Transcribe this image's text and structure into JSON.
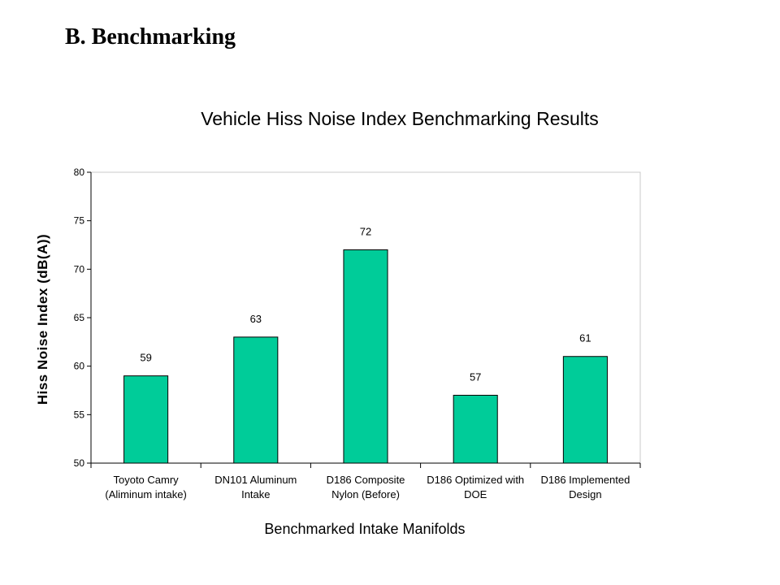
{
  "page": {
    "heading": "B. Benchmarking"
  },
  "chart_data": {
    "type": "bar",
    "title": "Vehicle Hiss Noise Index Benchmarking Results",
    "xlabel": "Benchmarked Intake Manifolds",
    "ylabel": "Hiss Noise Index (dB(A))",
    "categories": [
      [
        "Toyoto Camry",
        "(Aliminum intake)"
      ],
      [
        "DN101 Aluminum",
        "Intake"
      ],
      [
        "D186 Composite",
        "Nylon (Before)"
      ],
      [
        "D186 Optimized with",
        "DOE"
      ],
      [
        "D186 Implemented",
        "Design"
      ]
    ],
    "values": [
      59,
      63,
      72,
      57,
      61
    ],
    "data_labels": [
      "59",
      "63",
      "72",
      "57",
      "61"
    ],
    "ylim": [
      50,
      80
    ],
    "yticks": [
      50,
      55,
      60,
      65,
      70,
      75,
      80
    ],
    "grid": false,
    "legend": "none",
    "bar_color": "#00CC99",
    "bar_edge_color": "#000000"
  }
}
